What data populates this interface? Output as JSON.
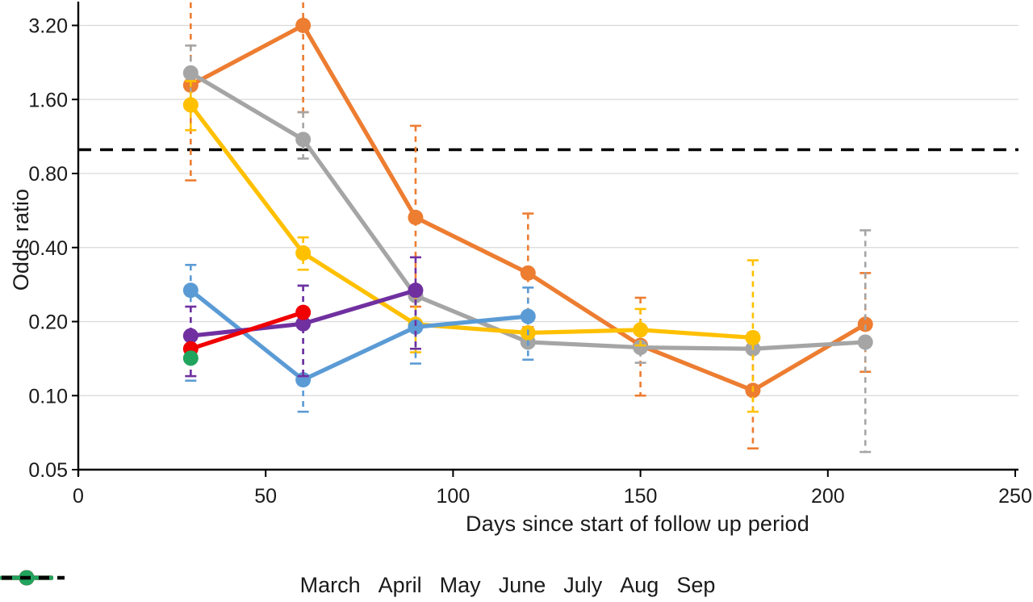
{
  "chart_data": {
    "type": "line",
    "title": "",
    "xlabel": "Days since start of follow up period",
    "ylabel": "Odds ratio",
    "x_ticks": [
      0,
      50,
      100,
      150,
      200,
      250
    ],
    "xlim": [
      0,
      250
    ],
    "y_scale": "log2",
    "y_ticks": [
      {
        "v": 3.2,
        "label": "3.20"
      },
      {
        "v": 1.6,
        "label": "1.60"
      },
      {
        "v": 0.8,
        "label": "0.80"
      },
      {
        "v": 0.4,
        "label": "0.40"
      },
      {
        "v": 0.2,
        "label": "0.20"
      },
      {
        "v": 0.1,
        "label": "0.10"
      },
      {
        "v": 0.05,
        "label": "0.05"
      }
    ],
    "ylim": [
      0.05,
      3.9
    ],
    "grid": true,
    "legend_position": "bottom",
    "reference_line": {
      "value": 1.0,
      "style": "dashed",
      "color": "#000000",
      "label": ""
    },
    "colors": {
      "grid": "#d9d9d9",
      "axis": "#000000",
      "text": "#1a1a1a"
    },
    "series": [
      {
        "name": "March",
        "color": "#ED7D31",
        "points": [
          {
            "x": 30,
            "y": 1.83,
            "lo": 0.75,
            "hi": 3.95
          },
          {
            "x": 60,
            "y": 3.2,
            "lo": 1.42,
            "hi": 3.95
          },
          {
            "x": 90,
            "y": 0.53,
            "lo": 0.23,
            "hi": 1.25
          },
          {
            "x": 120,
            "y": 0.315,
            "lo": 0.19,
            "hi": 0.55
          },
          {
            "x": 150,
            "y": 0.16,
            "lo": 0.1,
            "hi": 0.25
          },
          {
            "x": 180,
            "y": 0.105,
            "lo": 0.061,
            "hi": 0.18
          },
          {
            "x": 210,
            "y": 0.195,
            "lo": 0.125,
            "hi": 0.315
          }
        ]
      },
      {
        "name": "April",
        "color": "#A5A5A5",
        "points": [
          {
            "x": 30,
            "y": 2.05,
            "lo": 1.55,
            "hi": 2.65
          },
          {
            "x": 60,
            "y": 1.1,
            "lo": 0.92,
            "hi": 1.42
          },
          {
            "x": 90,
            "y": 0.255,
            "lo": null,
            "hi": null
          },
          {
            "x": 120,
            "y": 0.165,
            "lo": null,
            "hi": null
          },
          {
            "x": 150,
            "y": 0.157,
            "lo": 0.136,
            "hi": 0.185
          },
          {
            "x": 180,
            "y": 0.155,
            "lo": null,
            "hi": null
          },
          {
            "x": 210,
            "y": 0.165,
            "lo": 0.059,
            "hi": 0.47
          }
        ]
      },
      {
        "name": "May",
        "color": "#FFC000",
        "points": [
          {
            "x": 30,
            "y": 1.52,
            "lo": 1.2,
            "hi": 1.9
          },
          {
            "x": 60,
            "y": 0.38,
            "lo": 0.325,
            "hi": 0.44
          },
          {
            "x": 90,
            "y": 0.195,
            "lo": 0.15,
            "hi": 0.26
          },
          {
            "x": 120,
            "y": 0.18,
            "lo": null,
            "hi": null
          },
          {
            "x": 150,
            "y": 0.185,
            "lo": 0.16,
            "hi": 0.225
          },
          {
            "x": 180,
            "y": 0.172,
            "lo": 0.086,
            "hi": 0.355
          }
        ]
      },
      {
        "name": "June",
        "color": "#5B9BD5",
        "points": [
          {
            "x": 30,
            "y": 0.268,
            "lo": 0.115,
            "hi": 0.34
          },
          {
            "x": 60,
            "y": 0.116,
            "lo": 0.086,
            "hi": 0.28
          },
          {
            "x": 90,
            "y": 0.19,
            "lo": 0.135,
            "hi": 0.27
          },
          {
            "x": 120,
            "y": 0.21,
            "lo": 0.14,
            "hi": 0.275
          }
        ]
      },
      {
        "name": "July",
        "color": "#7030A0",
        "points": [
          {
            "x": 30,
            "y": 0.175,
            "lo": 0.12,
            "hi": 0.23
          },
          {
            "x": 60,
            "y": 0.196,
            "lo": 0.12,
            "hi": 0.28
          },
          {
            "x": 90,
            "y": 0.268,
            "lo": 0.155,
            "hi": 0.365
          }
        ]
      },
      {
        "name": "Aug",
        "color": "#F00000",
        "points": [
          {
            "x": 30,
            "y": 0.155,
            "lo": null,
            "hi": null
          },
          {
            "x": 60,
            "y": 0.218,
            "lo": null,
            "hi": null
          }
        ]
      },
      {
        "name": "Sep",
        "color": "#21A45D",
        "points": [
          {
            "x": 30,
            "y": 0.142,
            "lo": null,
            "hi": null
          }
        ]
      }
    ],
    "legend_extra_dashed_label": ""
  }
}
